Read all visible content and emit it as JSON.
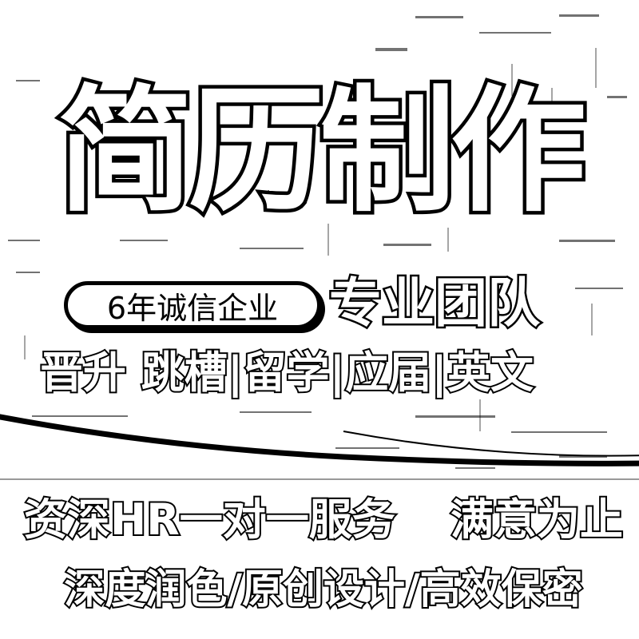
{
  "poster": {
    "title": "简历制作",
    "badge": "6年诚信企业",
    "team": "专业团队",
    "categories": "晋升 跳槽|留学|应届|英文",
    "service_line": {
      "left": "资深HR一对一服务",
      "right": "满意为止"
    },
    "features": "深度润色/原创设计/高效保密"
  },
  "colors": {
    "ink": "#000000",
    "paper": "#ffffff"
  }
}
